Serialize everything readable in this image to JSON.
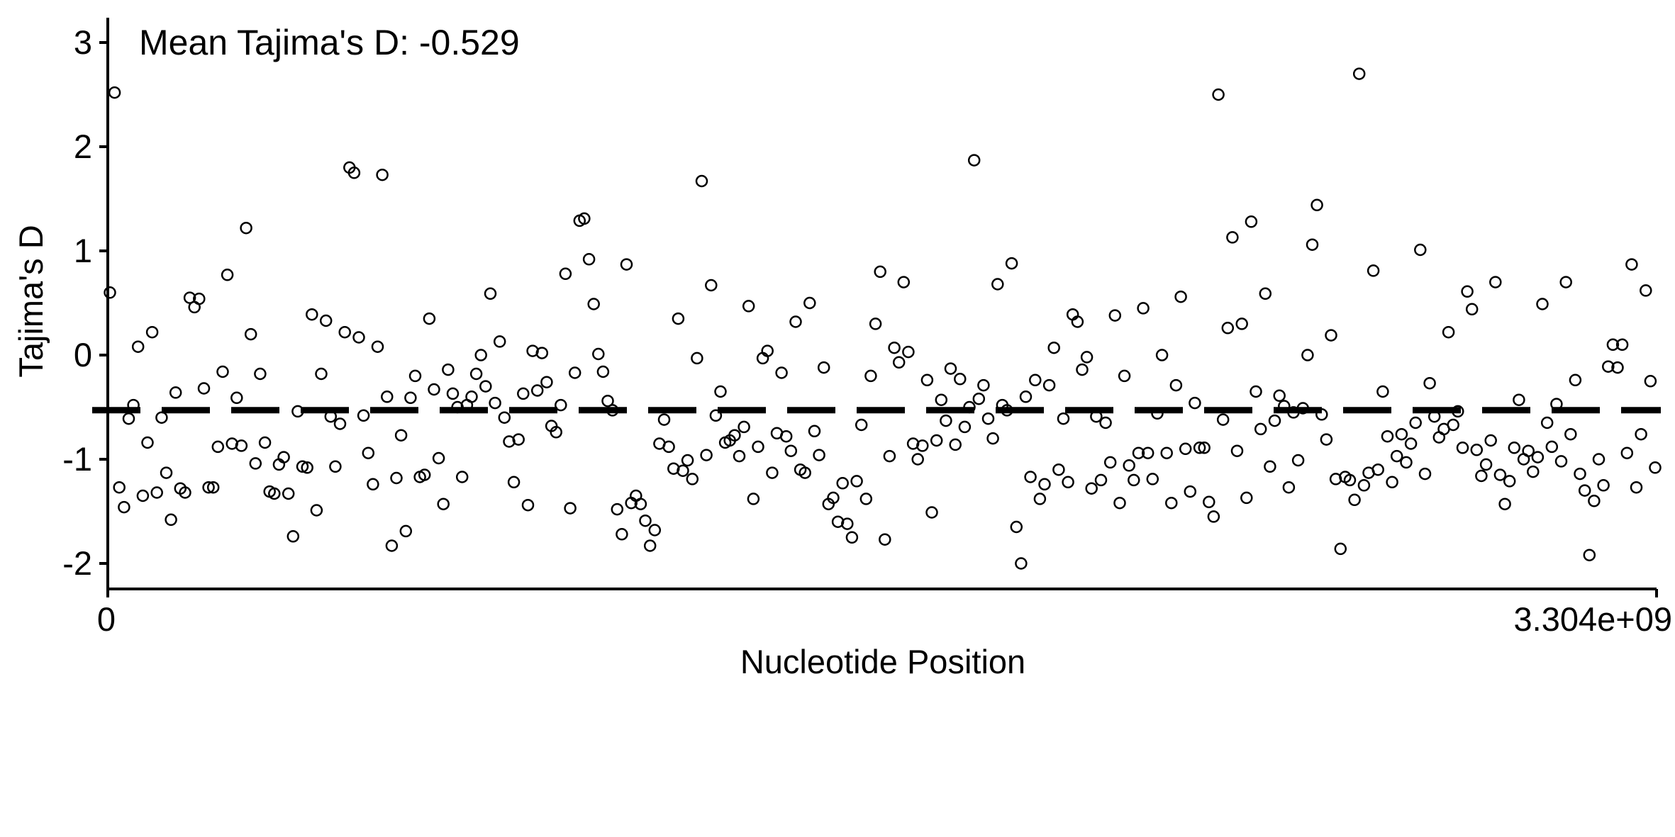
{
  "chart_data": {
    "type": "scatter",
    "title": "",
    "annotation": "Mean Tajima's D: -0.529",
    "xlabel": "Nucleotide Position",
    "ylabel": "Tajima's D",
    "xlim": [
      0,
      3304000000
    ],
    "ylim": [
      -2.2,
      3.2
    ],
    "x_tick_labels": [
      "0",
      "3.304e+09"
    ],
    "y_ticks": [
      -2,
      -1,
      0,
      1,
      2,
      3
    ],
    "y_tick_labels": [
      "-2",
      "-1",
      "0",
      "1",
      "2",
      "3"
    ],
    "mean_line": -0.529,
    "grid": false,
    "legend": "none",
    "point_color": "#000000",
    "x_max": 3304000000,
    "y": [
      0.6,
      2.52,
      -1.27,
      -1.46,
      -0.61,
      -0.48,
      0.08,
      -1.35,
      -0.84,
      0.22,
      -1.32,
      -0.6,
      -1.13,
      -1.58,
      -0.36,
      -1.28,
      -1.32,
      0.55,
      0.46,
      0.54,
      -0.32,
      -1.27,
      -1.27,
      -0.88,
      -0.16,
      0.77,
      -0.85,
      -0.41,
      -0.87,
      1.22,
      0.2,
      -1.04,
      -0.18,
      -0.84,
      -1.31,
      -1.33,
      -1.05,
      -0.98,
      -1.33,
      -1.74,
      -0.54,
      -1.07,
      -1.08,
      0.39,
      -1.49,
      -0.18,
      0.33,
      -0.59,
      -1.07,
      -0.66,
      0.22,
      1.8,
      1.75,
      0.17,
      -0.58,
      -0.94,
      -1.24,
      0.08,
      1.73,
      -0.4,
      -1.83,
      -1.18,
      -0.77,
      -1.69,
      -0.41,
      -0.2,
      -1.17,
      -1.15,
      0.35,
      -0.33,
      -0.99,
      -1.43,
      -0.14,
      -0.37,
      -0.5,
      -1.17,
      -0.48,
      -0.4,
      -0.18,
      0.0,
      -0.3,
      0.59,
      -0.46,
      0.13,
      -0.6,
      -0.83,
      -1.22,
      -0.81,
      -0.37,
      -1.44,
      0.04,
      -0.34,
      0.02,
      -0.26,
      -0.68,
      -0.74,
      -0.48,
      0.78,
      -1.47,
      -0.17,
      1.29,
      1.31,
      0.92,
      0.49,
      0.01,
      -0.16,
      -0.44,
      -0.53,
      -1.48,
      -1.72,
      0.87,
      -1.42,
      -1.35,
      -1.43,
      -1.59,
      -1.83,
      -1.68,
      -0.85,
      -0.62,
      -0.88,
      -1.09,
      0.35,
      -1.11,
      -1.01,
      -1.19,
      -0.03,
      1.67,
      -0.96,
      0.67,
      -0.58,
      -0.35,
      -0.84,
      -0.82,
      -0.77,
      -0.97,
      -0.69,
      0.47,
      -1.38,
      -0.88,
      -0.03,
      0.04,
      -1.13,
      -0.75,
      -0.17,
      -0.78,
      -0.92,
      0.32,
      -1.1,
      -1.13,
      0.5,
      -0.73,
      -0.96,
      -0.12,
      -1.43,
      -1.37,
      -1.6,
      -1.23,
      -1.62,
      -1.75,
      -1.21,
      -0.67,
      -1.38,
      -0.2,
      0.3,
      0.8,
      -1.77,
      -0.97,
      0.07,
      -0.07,
      0.7,
      0.03,
      -0.85,
      -1.0,
      -0.87,
      -0.24,
      -1.51,
      -0.82,
      -0.43,
      -0.63,
      -0.13,
      -0.86,
      -0.23,
      -0.69,
      -0.5,
      1.87,
      -0.42,
      -0.29,
      -0.61,
      -0.8,
      0.68,
      -0.48,
      -0.53,
      0.88,
      -1.65,
      -2.0,
      -0.4,
      -1.17,
      -0.24,
      -1.38,
      -1.24,
      -0.29,
      0.07,
      -1.1,
      -0.61,
      -1.22,
      0.39,
      0.32,
      -0.14,
      -0.02,
      -1.28,
      -0.59,
      -1.2,
      -0.65,
      -1.03,
      0.38,
      -1.42,
      -0.2,
      -1.06,
      -1.2,
      -0.94,
      0.45,
      -0.94,
      -1.19,
      -0.56,
      0.0,
      -0.94,
      -1.42,
      -0.29,
      0.56,
      -0.9,
      -1.31,
      -0.46,
      -0.89,
      -0.89,
      -1.41,
      -1.55,
      2.5,
      -0.62,
      0.26,
      1.13,
      -0.92,
      0.3,
      -1.37,
      1.28,
      -0.35,
      -0.71,
      0.59,
      -1.07,
      -0.63,
      -0.39,
      -0.49,
      -1.27,
      -0.55,
      -1.01,
      -0.51,
      0.0,
      1.06,
      1.44,
      -0.57,
      -0.81,
      0.19,
      -1.19,
      -1.86,
      -1.17,
      -1.2,
      -1.39,
      2.7,
      -1.25,
      -1.13,
      0.81,
      -1.1,
      -0.35,
      -0.78,
      -1.22,
      -0.97,
      -0.76,
      -1.03,
      -0.85,
      -0.65,
      1.01,
      -1.14,
      -0.27,
      -0.59,
      -0.79,
      -0.71,
      0.22,
      -0.67,
      -0.54,
      -0.89,
      0.61,
      0.44,
      -0.91,
      -1.16,
      -1.05,
      -0.82,
      0.7,
      -1.15,
      -1.43,
      -1.21,
      -0.89,
      -0.43,
      -1.0,
      -0.92,
      -1.12,
      -0.98,
      0.49,
      -0.65,
      -0.88,
      -0.47,
      -1.02,
      0.7,
      -0.76,
      -0.24,
      -1.14,
      -1.3,
      -1.92,
      -1.4,
      -1.0,
      -1.25,
      -0.11,
      0.1,
      -0.12,
      0.1,
      -0.94,
      0.87,
      -1.27,
      -0.76,
      0.62,
      -0.25,
      -1.08
    ]
  }
}
